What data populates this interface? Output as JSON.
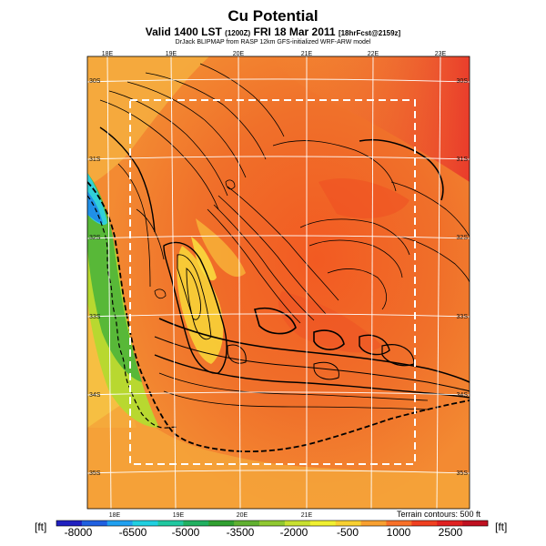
{
  "header": {
    "title": "Cu Potential",
    "subtitle_main": "Valid 1400 LST",
    "subtitle_small1": "(1200Z)",
    "subtitle_date": "FRI 18 Mar 2011",
    "subtitle_small2": "[18hrFcst@2159z]",
    "credit": "DrJack BLIPMAP from RASP 12km GFS-initialized WRF-ARW model"
  },
  "map": {
    "lon_labels_top": [
      "18E",
      "19E",
      "20E",
      "21E",
      "22E",
      "23E"
    ],
    "lon_labels_bottom": [
      "18E",
      "19E",
      "20E",
      "21E"
    ],
    "lat_labels_left": [
      "30S",
      "31S",
      "32S",
      "33S",
      "34S",
      "35S"
    ],
    "lat_labels_right": [
      "30S",
      "31S",
      "32S",
      "33S",
      "34S",
      "35S"
    ],
    "terrain_note": "Terrain contours: 500 ft"
  },
  "legend": {
    "unit_left": "[ft]",
    "unit_right": "[ft]",
    "tick_labels": [
      "-8000",
      "-6500",
      "-5000",
      "-3500",
      "-2000",
      "-500",
      "1000",
      "2500"
    ],
    "colors": [
      "#2020c0",
      "#2060e0",
      "#20a0f0",
      "#20d0e0",
      "#20c8a0",
      "#20b060",
      "#30a030",
      "#60b030",
      "#90c830",
      "#c8e030",
      "#f0f030",
      "#f8d030",
      "#f8a030",
      "#f87028",
      "#f04020",
      "#e02020",
      "#c01020"
    ]
  }
}
